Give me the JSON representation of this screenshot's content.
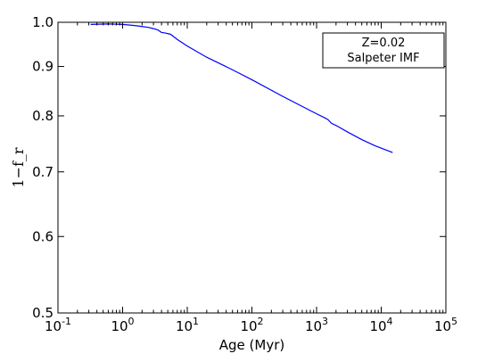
{
  "chart_data": {
    "type": "line",
    "xscale": "log",
    "yscale": "log",
    "xlim": [
      0.1,
      100000
    ],
    "ylim": [
      0.5,
      1.0
    ],
    "xlabel": "Age (Myr)",
    "ylabel": "1−f_r",
    "x_ticks": [
      {
        "value": 0.1,
        "base": "10",
        "exp": "-1"
      },
      {
        "value": 1,
        "base": "10",
        "exp": "0"
      },
      {
        "value": 10,
        "base": "10",
        "exp": "1"
      },
      {
        "value": 100,
        "base": "10",
        "exp": "2"
      },
      {
        "value": 1000,
        "base": "10",
        "exp": "3"
      },
      {
        "value": 10000,
        "base": "10",
        "exp": "4"
      },
      {
        "value": 100000,
        "base": "10",
        "exp": "5"
      }
    ],
    "y_ticks": [
      {
        "value": 0.5,
        "label": "0.5"
      },
      {
        "value": 0.6,
        "label": "0.6"
      },
      {
        "value": 0.7,
        "label": "0.7"
      },
      {
        "value": 0.8,
        "label": "0.8"
      },
      {
        "value": 0.9,
        "label": "0.9"
      },
      {
        "value": 1.0,
        "label": "1.0"
      }
    ],
    "grid": false,
    "legend": {
      "position": "top-right",
      "lines": [
        "Z=0.02",
        "Salpeter IMF"
      ]
    },
    "series": [
      {
        "color": "#0000ff",
        "x": [
          0.32,
          0.6,
          1.0,
          1.6,
          2.0,
          2.5,
          3.0,
          3.5,
          4.0,
          4.5,
          5.5,
          7,
          10,
          20,
          50,
          100,
          300,
          1000,
          1300,
          1500,
          1700,
          2000,
          3000,
          5000,
          8000,
          15000
        ],
        "y": [
          0.995,
          0.996,
          0.995,
          0.992,
          0.99,
          0.988,
          0.985,
          0.982,
          0.976,
          0.975,
          0.972,
          0.96,
          0.945,
          0.92,
          0.893,
          0.872,
          0.838,
          0.804,
          0.797,
          0.793,
          0.786,
          0.782,
          0.77,
          0.756,
          0.745,
          0.733
        ]
      }
    ]
  }
}
